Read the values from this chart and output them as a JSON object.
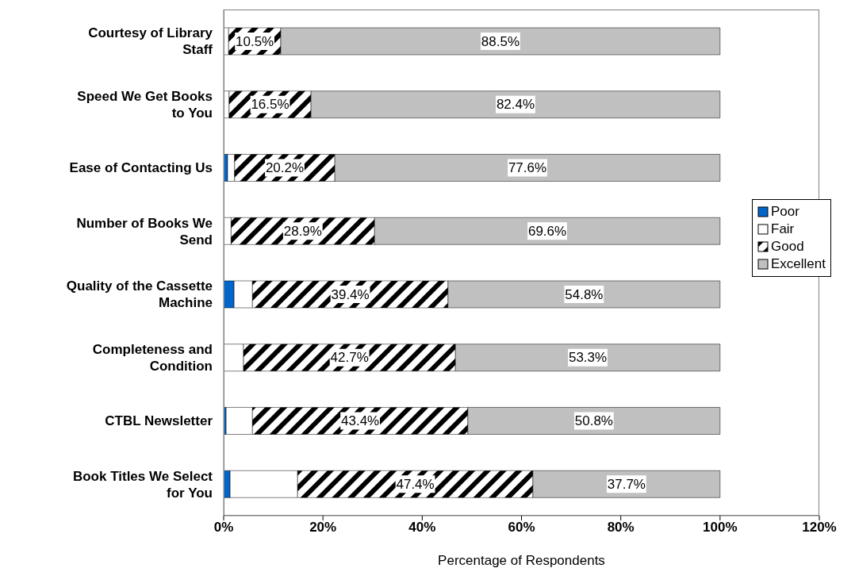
{
  "chart_data": {
    "type": "bar",
    "orientation": "horizontal",
    "stacked": true,
    "xlabel": "Percentage of Respondents",
    "categories": [
      "Courtesy of Library Staff",
      "Speed We Get Books to You",
      "Ease of Contacting Us",
      "Number of Books We Send",
      "Quality of the Cassette Machine",
      "Completeness and Condition",
      "CTBL Newsletter",
      "Book Titles We Select for You"
    ],
    "series": [
      {
        "name": "Poor",
        "color": "#0066cc",
        "values": [
          0,
          0,
          0.8,
          0,
          2.1,
          0,
          0.5,
          1.3
        ]
      },
      {
        "name": "Fair",
        "color": "#ffffff",
        "values": [
          1.0,
          1.1,
          1.4,
          1.5,
          3.7,
          4.0,
          5.3,
          13.6
        ]
      },
      {
        "name": "Good",
        "color": "#000000",
        "values": [
          10.5,
          16.5,
          20.2,
          28.9,
          39.4,
          42.7,
          43.4,
          47.4
        ],
        "value_labels": [
          "10.5%",
          "16.5%",
          "20.2%",
          "28.9%",
          "39.4%",
          "42.7%",
          "43.4%",
          "47.4%"
        ]
      },
      {
        "name": "Excellent",
        "color": "#c0c0c0",
        "values": [
          88.5,
          82.4,
          77.6,
          69.6,
          54.8,
          53.3,
          50.8,
          37.7
        ],
        "value_labels": [
          "88.5%",
          "82.4%",
          "77.6%",
          "69.6%",
          "54.8%",
          "53.3%",
          "50.8%",
          "37.7%"
        ]
      }
    ],
    "xlim": [
      0,
      120
    ],
    "xticks": [
      {
        "value": 0,
        "label": "0%"
      },
      {
        "value": 20,
        "label": "20%"
      },
      {
        "value": 40,
        "label": "40%"
      },
      {
        "value": 60,
        "label": "60%"
      },
      {
        "value": 80,
        "label": "80%"
      },
      {
        "value": 100,
        "label": "100%"
      },
      {
        "value": 120,
        "label": "120%"
      }
    ],
    "legend": "right",
    "grid": false
  }
}
